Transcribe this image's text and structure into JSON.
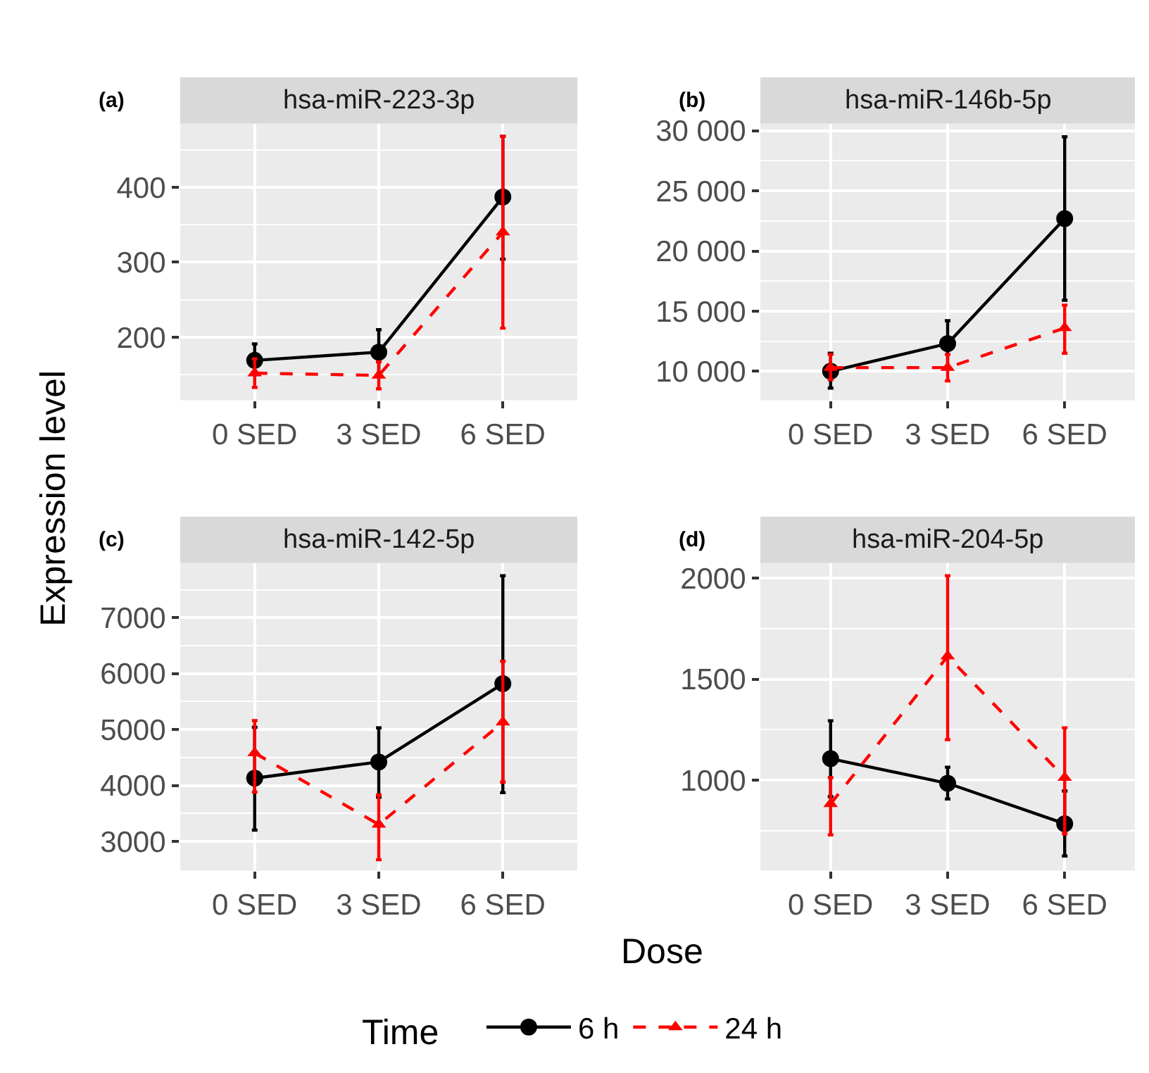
{
  "chart_data": [
    {
      "type": "line",
      "title": "hsa-miR-223-3p",
      "annotations": [
        "(a)"
      ],
      "xlabel": "Dose",
      "ylabel": "Expression level",
      "legend_title": "Time",
      "legend": "bottom",
      "grid": true,
      "categories": [
        "0 SED",
        "3 SED",
        "6 SED"
      ],
      "ylim": [
        116,
        485
      ],
      "yticks": [
        200,
        300,
        400
      ],
      "series": [
        {
          "name": "6 h",
          "color": "#000000",
          "marker": "circle",
          "line_style": "solid",
          "values": [
            169,
            180,
            387
          ],
          "errors": [
            [
              150,
              191
            ],
            [
              150,
              210
            ],
            [
              304,
              468
            ]
          ]
        },
        {
          "name": "24 h",
          "color": "#ff0000",
          "marker": "triangle",
          "line_style": "dashed",
          "values": [
            152,
            149,
            340
          ],
          "errors": [
            [
              133,
              171
            ],
            [
              131,
              167
            ],
            [
              212,
              468
            ]
          ]
        }
      ]
    },
    {
      "type": "line",
      "title": "hsa-miR-146b-5p",
      "annotations": [
        "(b)"
      ],
      "grid": true,
      "categories": [
        "0 SED",
        "3 SED",
        "6 SED"
      ],
      "ylim": [
        7600,
        30600
      ],
      "yticks": [
        {
          "value": 10000,
          "label": "10 000"
        },
        {
          "value": 15000,
          "label": "15 000"
        },
        {
          "value": 20000,
          "label": "20 000"
        },
        {
          "value": 25000,
          "label": "25 000"
        },
        {
          "value": 30000,
          "label": "30 000"
        }
      ],
      "series": [
        {
          "name": "6 h",
          "color": "#000000",
          "marker": "circle",
          "line_style": "solid",
          "values": [
            10000,
            12300,
            22700
          ],
          "errors": [
            [
              8600,
              11500
            ],
            [
              10400,
              14200
            ],
            [
              15900,
              29500
            ]
          ]
        },
        {
          "name": "24 h",
          "color": "#ff0000",
          "marker": "triangle",
          "line_style": "dashed",
          "values": [
            10300,
            10300,
            13600
          ],
          "errors": [
            [
              9300,
              11400
            ],
            [
              9200,
              11400
            ],
            [
              11500,
              15500
            ]
          ]
        }
      ]
    },
    {
      "type": "line",
      "title": "hsa-miR-142-5p",
      "annotations": [
        "(c)"
      ],
      "grid": true,
      "categories": [
        "0 SED",
        "3 SED",
        "6 SED"
      ],
      "ylim": [
        2480,
        7980
      ],
      "yticks": [
        3000,
        4000,
        5000,
        6000,
        7000
      ],
      "series": [
        {
          "name": "6 h",
          "color": "#000000",
          "marker": "circle",
          "line_style": "solid",
          "values": [
            4130,
            4420,
            5820
          ],
          "errors": [
            [
              3200,
              5040
            ],
            [
              3790,
              5030
            ],
            [
              3870,
              7750
            ]
          ]
        },
        {
          "name": "24 h",
          "color": "#ff0000",
          "marker": "triangle",
          "line_style": "dashed",
          "values": [
            4580,
            3300,
            5130
          ],
          "errors": [
            [
              3880,
              5160
            ],
            [
              2670,
              3830
            ],
            [
              4060,
              6220
            ]
          ]
        }
      ]
    },
    {
      "type": "line",
      "title": "hsa-miR-204-5p",
      "annotations": [
        "(d)"
      ],
      "grid": true,
      "categories": [
        "0 SED",
        "3 SED",
        "6 SED"
      ],
      "ylim": [
        553,
        2075
      ],
      "yticks": [
        1000,
        1500,
        2000
      ],
      "series": [
        {
          "name": "6 h",
          "color": "#000000",
          "marker": "circle",
          "line_style": "solid",
          "values": [
            1106,
            984,
            784
          ],
          "errors": [
            [
              918,
              1294
            ],
            [
              906,
              1064
            ],
            [
              624,
              946
            ]
          ]
        },
        {
          "name": "24 h",
          "color": "#ff0000",
          "marker": "triangle",
          "line_style": "dashed",
          "values": [
            882,
            1613,
            1012
          ],
          "errors": [
            [
              729,
              1012
            ],
            [
              1200,
              2012
            ],
            [
              734,
              1259
            ]
          ]
        }
      ]
    }
  ]
}
